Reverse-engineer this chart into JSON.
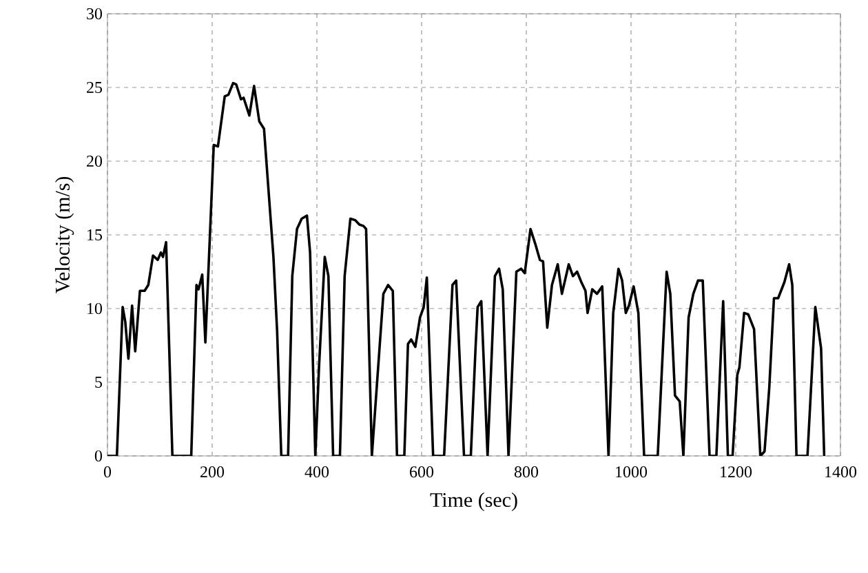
{
  "chart_data": {
    "type": "line",
    "xlabel": "Time (sec)",
    "ylabel": "Velocity (m/s)",
    "xlim": [
      0,
      1400
    ],
    "ylim": [
      0,
      30
    ],
    "xticks": [
      0,
      200,
      400,
      600,
      800,
      1000,
      1200,
      1400
    ],
    "yticks": [
      0,
      5,
      10,
      15,
      20,
      25,
      30
    ],
    "grid": true,
    "series": [
      {
        "color": "#000000",
        "x": [
          0,
          18,
          29,
          34,
          40,
          47,
          53,
          62,
          71,
          78,
          87,
          96,
          102,
          106,
          112,
          124,
          160,
          170,
          174,
          181,
          187,
          203,
          211,
          224,
          231,
          240,
          246,
          255,
          260,
          271,
          280,
          290,
          299,
          306,
          317,
          324,
          332,
          345,
          353,
          362,
          371,
          381,
          387,
          397,
          404,
          415,
          422,
          431,
          444,
          453,
          464,
          473,
          481,
          489,
          494,
          505,
          527,
          536,
          545,
          553,
          567,
          574,
          580,
          588,
          597,
          604,
          610,
          622,
          643,
          659,
          666,
          681,
          694,
          703,
          707,
          714,
          726,
          740,
          748,
          755,
          766,
          781,
          790,
          797,
          808,
          817,
          826,
          832,
          840,
          849,
          860,
          868,
          881,
          889,
          897,
          905,
          913,
          917,
          926,
          935,
          945,
          957,
          966,
          976,
          983,
          990,
          996,
          1005,
          1014,
          1025,
          1051,
          1068,
          1075,
          1084,
          1093,
          1100,
          1110,
          1119,
          1128,
          1137,
          1150,
          1163,
          1176,
          1185,
          1194,
          1203,
          1207,
          1216,
          1224,
          1235,
          1247,
          1255,
          1264,
          1273,
          1281,
          1293,
          1302,
          1308,
          1316,
          1337,
          1352,
          1363,
          1369
        ],
        "values": [
          0,
          0,
          10.1,
          9.1,
          6.6,
          10.2,
          7.1,
          11.2,
          11.2,
          11.6,
          13.6,
          13.3,
          13.8,
          13.5,
          14.5,
          0,
          0,
          11.6,
          11.3,
          12.3,
          7.7,
          21.1,
          21.0,
          24.4,
          24.5,
          25.3,
          25.2,
          24.2,
          24.3,
          23.1,
          25.1,
          22.7,
          22.2,
          18.8,
          13.5,
          8.5,
          0,
          0,
          12.2,
          15.4,
          16.1,
          16.3,
          13.8,
          0,
          6.0,
          13.5,
          12.2,
          0,
          0,
          12.2,
          16.1,
          16.0,
          15.7,
          15.6,
          15.4,
          0,
          11.0,
          11.6,
          11.2,
          0,
          0,
          7.6,
          7.9,
          7.4,
          9.4,
          10.1,
          12.1,
          0,
          0,
          11.6,
          11.9,
          0,
          0,
          7.3,
          10.1,
          10.5,
          0,
          12.2,
          12.7,
          11.3,
          0,
          12.5,
          12.7,
          12.4,
          15.4,
          14.4,
          13.3,
          13.2,
          8.7,
          11.6,
          13.0,
          11.0,
          13.0,
          12.2,
          12.5,
          11.8,
          11.2,
          9.7,
          11.3,
          11.0,
          11.5,
          0,
          9.7,
          12.7,
          11.9,
          9.7,
          10.2,
          11.5,
          9.7,
          0,
          0,
          12.5,
          11.0,
          4.1,
          3.7,
          0,
          9.4,
          11.0,
          11.9,
          11.9,
          0,
          0,
          10.5,
          0,
          0,
          5.5,
          6.0,
          9.7,
          9.6,
          8.6,
          0,
          0.3,
          4.6,
          10.7,
          10.7,
          11.8,
          13.0,
          11.6,
          0,
          0,
          10.1,
          7.3,
          0
        ]
      }
    ]
  }
}
